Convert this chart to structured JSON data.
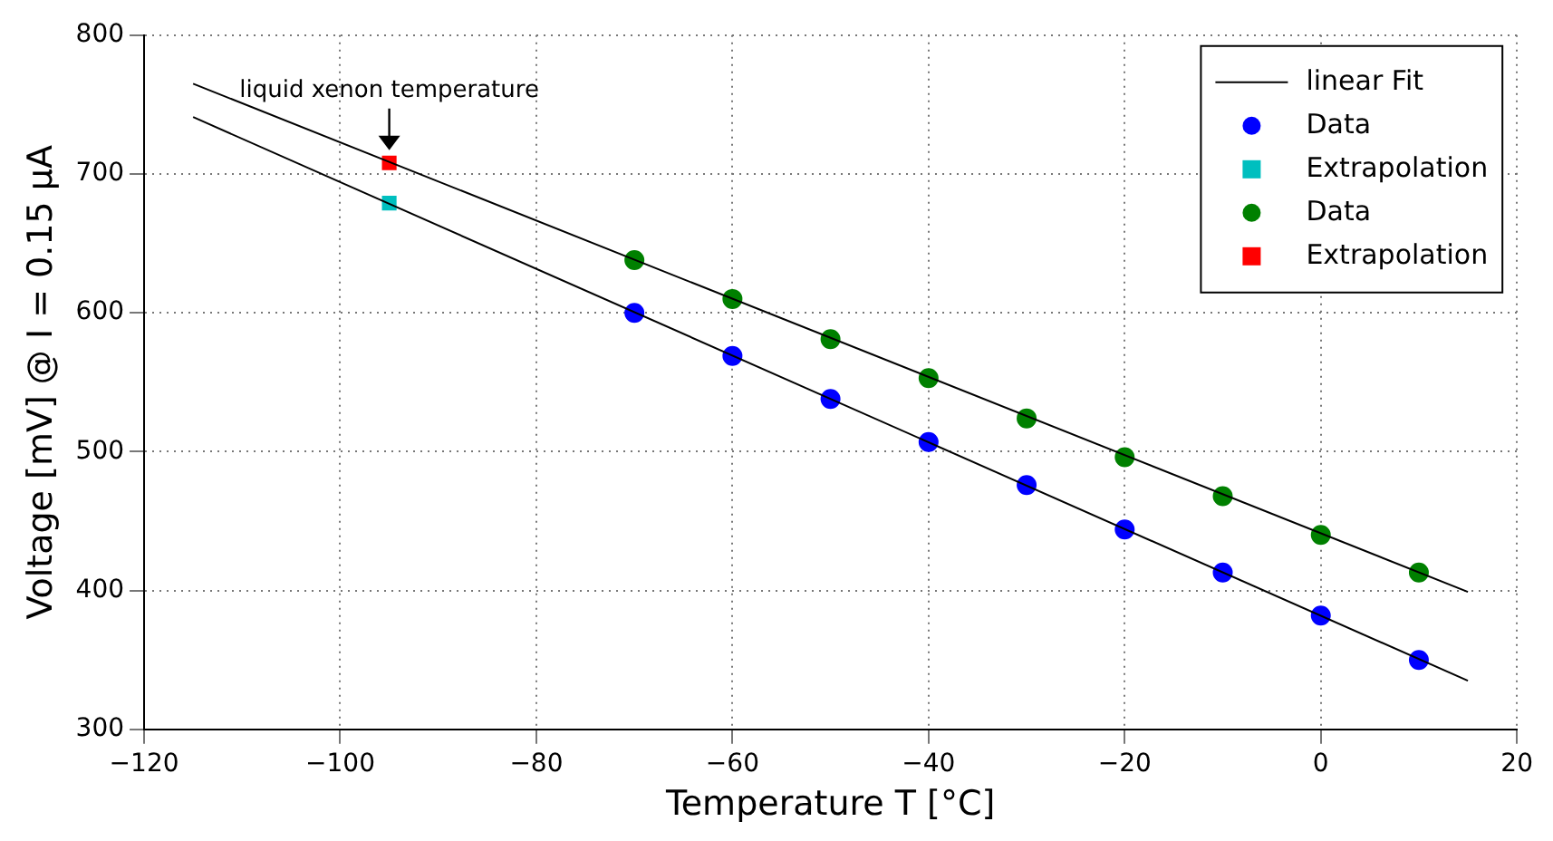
{
  "chart_data": {
    "type": "scatter",
    "xlabel": "Temperature T [°C]",
    "ylabel": "Voltage [mV] @ I = 0.15 μA",
    "xlim": [
      -120,
      20
    ],
    "xticks": [
      -120,
      -100,
      -80,
      -60,
      -40,
      -20,
      0,
      20
    ],
    "ylim": [
      300,
      800
    ],
    "yticks": [
      300,
      400,
      500,
      600,
      700,
      800
    ],
    "grid": true,
    "legend": "top right",
    "annotations": [
      {
        "text": "liquid xenon temperature",
        "x": -95,
        "y": 708
      }
    ],
    "series": [
      {
        "name": "linear Fit",
        "type": "line",
        "marker": "none",
        "color": "#000000",
        "x": [
          -115,
          15
        ],
        "values": [
          741,
          335
        ]
      },
      {
        "type": "line",
        "marker": "none",
        "color": "#000000",
        "x": [
          -115,
          15
        ],
        "values": [
          765,
          399
        ]
      },
      {
        "name": "Data",
        "marker": "circle",
        "color": "#0000ff",
        "x": [
          -70,
          -60,
          -50,
          -40,
          -30,
          -20,
          -10,
          0,
          10
        ],
        "values": [
          600,
          569,
          538,
          507,
          476,
          444,
          413,
          382,
          350
        ]
      },
      {
        "name": "Extrapolation",
        "marker": "square",
        "color": "#00bfbf",
        "x": [
          -95
        ],
        "values": [
          679
        ]
      },
      {
        "name": "Data",
        "marker": "circle",
        "color": "#008000",
        "x": [
          -70,
          -60,
          -50,
          -40,
          -30,
          -20,
          -10,
          0,
          10
        ],
        "values": [
          638,
          610,
          581,
          553,
          524,
          496,
          468,
          440,
          413
        ]
      },
      {
        "name": "Extrapolation",
        "marker": "square",
        "color": "#ff0000",
        "x": [
          -95
        ],
        "values": [
          708
        ]
      }
    ]
  }
}
